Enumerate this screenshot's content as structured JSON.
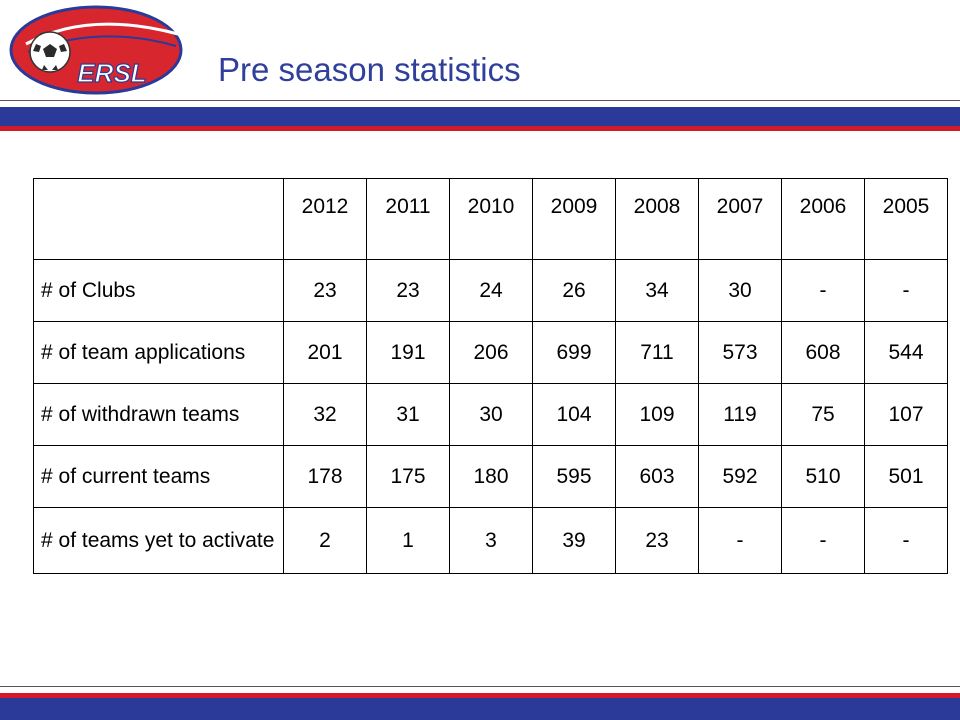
{
  "header": {
    "logo_text": "ERSL",
    "title": "Pre season statistics"
  },
  "colors": {
    "band_blue": "#2b3a98",
    "band_red": "#d21a2a",
    "title_color": "#2f3f9a",
    "logo_red": "#d8262e"
  },
  "table": {
    "years": [
      "2012",
      "2011",
      "2010",
      "2009",
      "2008",
      "2007",
      "2006",
      "2005"
    ],
    "rows": [
      {
        "label": "# of Clubs",
        "values": [
          "23",
          "23",
          "24",
          "26",
          "34",
          "30",
          "-",
          "-"
        ]
      },
      {
        "label": "# of team applications",
        "values": [
          "201",
          "191",
          "206",
          "699",
          "711",
          "573",
          "608",
          "544"
        ]
      },
      {
        "label": "# of withdrawn teams",
        "values": [
          "32",
          "31",
          "30",
          "104",
          "109",
          "119",
          "75",
          "107"
        ]
      },
      {
        "label": "# of current teams",
        "values": [
          "178",
          "175",
          "180",
          "595",
          "603",
          "592",
          "510",
          "501"
        ]
      },
      {
        "label": "# of teams yet to activate",
        "values": [
          "2",
          "1",
          "3",
          "39",
          "23",
          "-",
          "-",
          "-"
        ]
      }
    ]
  }
}
